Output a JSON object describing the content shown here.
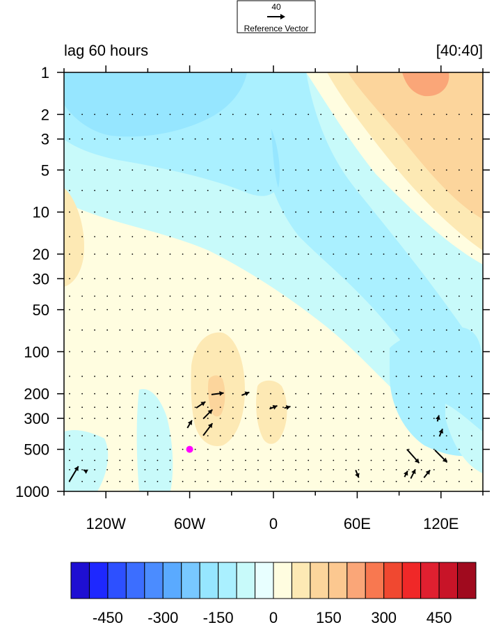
{
  "chart_data": {
    "type": "contour",
    "title_left": "lag 60 hours",
    "title_right": "[40:40]",
    "reference_vector": {
      "value": "40",
      "label": "Reference Vector"
    },
    "x_axis": {
      "range": [
        -150,
        150
      ],
      "ticks": [
        {
          "value": -120,
          "label": "120W"
        },
        {
          "value": -60,
          "label": "60W"
        },
        {
          "value": 0,
          "label": "0"
        },
        {
          "value": 60,
          "label": "60E"
        },
        {
          "value": 120,
          "label": "120E"
        }
      ],
      "minor_step": 30
    },
    "y_axis": {
      "scale": "log",
      "range": [
        1,
        1000
      ],
      "reversed": true,
      "ticks": [
        {
          "value": 1,
          "label": "1"
        },
        {
          "value": 2,
          "label": "2"
        },
        {
          "value": 3,
          "label": "3"
        },
        {
          "value": 5,
          "label": "5"
        },
        {
          "value": 10,
          "label": "10"
        },
        {
          "value": 20,
          "label": "20"
        },
        {
          "value": 30,
          "label": "30"
        },
        {
          "value": 50,
          "label": "50"
        },
        {
          "value": 100,
          "label": "100"
        },
        {
          "value": 200,
          "label": "200"
        },
        {
          "value": 300,
          "label": "300"
        },
        {
          "value": 500,
          "label": "500"
        },
        {
          "value": 1000,
          "label": "1000"
        }
      ]
    },
    "colorbar": {
      "colors": [
        "#1e0fd2",
        "#1e28ff",
        "#2d50ff",
        "#3c6eff",
        "#4b8cff",
        "#5aaaff",
        "#78c8ff",
        "#96e6ff",
        "#aaf0ff",
        "#c8fafa",
        "#e8ffff",
        "#fffde0",
        "#fde9b4",
        "#fcd59c",
        "#fcc890",
        "#faa678",
        "#f87850",
        "#f04830",
        "#f02828",
        "#e02030",
        "#c81428",
        "#a00a1e"
      ],
      "tick_labels": [
        "-450",
        "-300",
        "-150",
        "0",
        "150",
        "300",
        "450"
      ]
    },
    "marker": {
      "x": -60,
      "y": 500,
      "color": "#ff00ff"
    },
    "arrows": [
      {
        "x": -143,
        "y": 750,
        "u": 6,
        "v": 10
      },
      {
        "x": -135,
        "y": 710,
        "u": -2,
        "v": 1
      },
      {
        "x": -60,
        "y": 330,
        "u": 3,
        "v": 5
      },
      {
        "x": -47,
        "y": 280,
        "u": 6,
        "v": 6
      },
      {
        "x": -47,
        "y": 360,
        "u": 6,
        "v": 8
      },
      {
        "x": -40,
        "y": 200,
        "u": 8,
        "v": 1
      },
      {
        "x": -52,
        "y": 240,
        "u": 6,
        "v": 4
      },
      {
        "x": -20,
        "y": 200,
        "u": 5,
        "v": 2
      },
      {
        "x": 0,
        "y": 250,
        "u": 5,
        "v": 2
      },
      {
        "x": 10,
        "y": 250,
        "u": 4,
        "v": 1
      },
      {
        "x": 100,
        "y": 560,
        "u": 8,
        "v": -9
      },
      {
        "x": 120,
        "y": 560,
        "u": 8,
        "v": -8
      },
      {
        "x": 100,
        "y": 750,
        "u": 3,
        "v": 6
      },
      {
        "x": 110,
        "y": 750,
        "u": 4,
        "v": 5
      },
      {
        "x": 120,
        "y": 380,
        "u": 2,
        "v": 5
      },
      {
        "x": 118,
        "y": 300,
        "u": 1,
        "v": 4
      },
      {
        "x": 60,
        "y": 750,
        "u": 2,
        "v": -5
      },
      {
        "x": 95,
        "y": 750,
        "u": 2,
        "v": 4
      }
    ]
  }
}
